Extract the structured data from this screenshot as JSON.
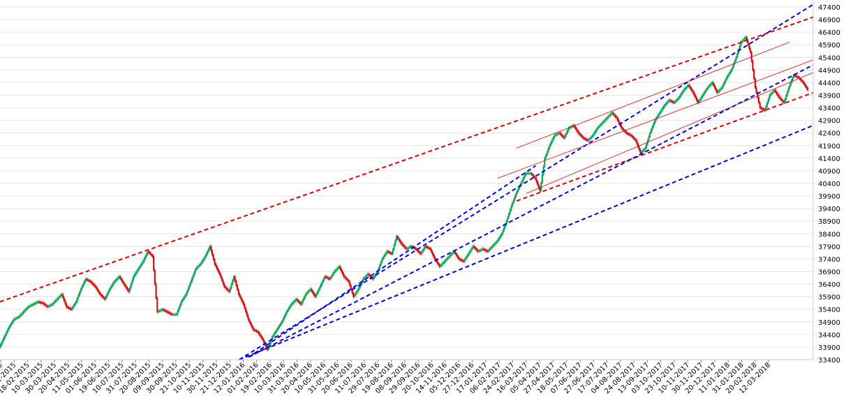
{
  "chart_data": {
    "type": "candlestick",
    "title": "",
    "xlabel": "",
    "ylabel": "",
    "ylim": [
      33400,
      47400
    ],
    "yticks": [
      33400,
      33900,
      34400,
      34900,
      35400,
      35900,
      36400,
      36900,
      37400,
      37900,
      38400,
      38900,
      39400,
      39900,
      40400,
      40900,
      41400,
      41900,
      42400,
      42900,
      43400,
      43900,
      44400,
      44900,
      45400,
      45900,
      46400,
      46900,
      47400
    ],
    "x_tick_labels": [
      "2015",
      "01-2015",
      "18-02-2015",
      "10-03-2015",
      "30-03-2015",
      "20-04-2015",
      "11-05-2015",
      "01-06-2015",
      "19-06-2015",
      "10-07-2015",
      "31-07-2015",
      "20-08-2015",
      "09-09-2015",
      "30-09-2015",
      "21-10-2015",
      "10-11-2015",
      "30-11-2015",
      "21-12-2015",
      "12-01-2016",
      "01-02-2016",
      "19-02-2016",
      "10-03-2016",
      "31-03-2016",
      "20-04-2016",
      "10-05-2016",
      "31-05-2016",
      "20-06-2016",
      "11-07-2016",
      "29-07-2016",
      "19-08-2016",
      "08-09-2016",
      "29-09-2016",
      "20-10-2016",
      "14-11-2016",
      "05-12-2016",
      "27-12-2016",
      "17-01-2017",
      "06-02-2017",
      "24-02-2017",
      "16-03-2017",
      "05-04-2017",
      "27-04-2017",
      "18-05-2017",
      "07-06-2017",
      "27-06-2017",
      "17-07-2017",
      "04-08-2017",
      "24-08-2017",
      "13-09-2017",
      "03-10-2017",
      "23-10-2017",
      "10-11-2017",
      "30-11-2017",
      "20-12-2017",
      "11-01-2018",
      "31-01-2018",
      "20-02-2018",
      "12-03-2018"
    ],
    "closing_path": [
      [
        0,
        33900
      ],
      [
        1,
        34300
      ],
      [
        2,
        34700
      ],
      [
        3,
        35000
      ],
      [
        4,
        35100
      ],
      [
        5,
        35300
      ],
      [
        6,
        35500
      ],
      [
        7,
        35600
      ],
      [
        8,
        35700
      ],
      [
        9,
        35650
      ],
      [
        10,
        35500
      ],
      [
        11,
        35600
      ],
      [
        12,
        35800
      ],
      [
        13,
        36000
      ],
      [
        14,
        35500
      ],
      [
        15,
        35400
      ],
      [
        16,
        35700
      ],
      [
        17,
        36200
      ],
      [
        18,
        36600
      ],
      [
        19,
        36500
      ],
      [
        20,
        36300
      ],
      [
        21,
        36000
      ],
      [
        22,
        35800
      ],
      [
        23,
        36200
      ],
      [
        24,
        36500
      ],
      [
        25,
        36700
      ],
      [
        26,
        36400
      ],
      [
        27,
        36100
      ],
      [
        28,
        36700
      ],
      [
        29,
        37000
      ],
      [
        30,
        37300
      ],
      [
        31,
        37700
      ],
      [
        32,
        37500
      ],
      [
        33,
        35300
      ],
      [
        34,
        35400
      ],
      [
        35,
        35300
      ],
      [
        36,
        35200
      ],
      [
        37,
        35200
      ],
      [
        38,
        35700
      ],
      [
        39,
        36000
      ],
      [
        40,
        36500
      ],
      [
        41,
        37000
      ],
      [
        42,
        37200
      ],
      [
        43,
        37500
      ],
      [
        44,
        37900
      ],
      [
        45,
        37200
      ],
      [
        46,
        36800
      ],
      [
        47,
        36300
      ],
      [
        48,
        36100
      ],
      [
        49,
        36700
      ],
      [
        50,
        36000
      ],
      [
        51,
        35600
      ],
      [
        52,
        35000
      ],
      [
        53,
        34600
      ],
      [
        54,
        34500
      ],
      [
        55,
        34200
      ],
      [
        56,
        33800
      ],
      [
        57,
        34300
      ],
      [
        58,
        34600
      ],
      [
        59,
        34900
      ],
      [
        60,
        35300
      ],
      [
        61,
        35600
      ],
      [
        62,
        35800
      ],
      [
        63,
        35600
      ],
      [
        64,
        36000
      ],
      [
        65,
        36200
      ],
      [
        66,
        35900
      ],
      [
        67,
        36300
      ],
      [
        68,
        36700
      ],
      [
        69,
        36600
      ],
      [
        70,
        36900
      ],
      [
        71,
        37100
      ],
      [
        72,
        36700
      ],
      [
        73,
        36500
      ],
      [
        74,
        35900
      ],
      [
        75,
        36200
      ],
      [
        76,
        36600
      ],
      [
        77,
        36800
      ],
      [
        78,
        36600
      ],
      [
        79,
        36900
      ],
      [
        80,
        37400
      ],
      [
        81,
        37700
      ],
      [
        82,
        37600
      ],
      [
        83,
        38300
      ],
      [
        84,
        38000
      ],
      [
        85,
        37800
      ],
      [
        86,
        37900
      ],
      [
        87,
        37800
      ],
      [
        88,
        37600
      ],
      [
        89,
        37900
      ],
      [
        90,
        37800
      ],
      [
        91,
        37400
      ],
      [
        92,
        37100
      ],
      [
        93,
        37300
      ],
      [
        94,
        37500
      ],
      [
        95,
        37700
      ],
      [
        96,
        37400
      ],
      [
        97,
        37300
      ],
      [
        98,
        37600
      ],
      [
        99,
        37900
      ],
      [
        100,
        37700
      ],
      [
        101,
        37800
      ],
      [
        102,
        37700
      ],
      [
        103,
        37900
      ],
      [
        104,
        38100
      ],
      [
        105,
        38400
      ],
      [
        106,
        38900
      ],
      [
        107,
        39500
      ],
      [
        108,
        40000
      ],
      [
        109,
        40400
      ],
      [
        110,
        40800
      ],
      [
        111,
        40800
      ],
      [
        112,
        40600
      ],
      [
        113,
        40100
      ],
      [
        114,
        41400
      ],
      [
        115,
        41900
      ],
      [
        116,
        42300
      ],
      [
        117,
        42400
      ],
      [
        118,
        42200
      ],
      [
        119,
        42600
      ],
      [
        120,
        42700
      ],
      [
        121,
        42400
      ],
      [
        122,
        42200
      ],
      [
        123,
        42100
      ],
      [
        124,
        42300
      ],
      [
        125,
        42600
      ],
      [
        126,
        42800
      ],
      [
        127,
        43000
      ],
      [
        128,
        43200
      ],
      [
        129,
        43000
      ],
      [
        130,
        42600
      ],
      [
        131,
        42400
      ],
      [
        132,
        42300
      ],
      [
        133,
        42100
      ],
      [
        134,
        41600
      ],
      [
        135,
        41800
      ],
      [
        136,
        42400
      ],
      [
        137,
        42900
      ],
      [
        138,
        43200
      ],
      [
        139,
        43500
      ],
      [
        140,
        43700
      ],
      [
        141,
        43600
      ],
      [
        142,
        43800
      ],
      [
        143,
        44100
      ],
      [
        144,
        44300
      ],
      [
        145,
        44000
      ],
      [
        146,
        43600
      ],
      [
        147,
        43900
      ],
      [
        148,
        44200
      ],
      [
        149,
        44400
      ],
      [
        150,
        44000
      ],
      [
        151,
        44200
      ],
      [
        152,
        44600
      ],
      [
        153,
        44900
      ],
      [
        154,
        45400
      ],
      [
        155,
        46000
      ],
      [
        156,
        46200
      ],
      [
        157,
        45600
      ],
      [
        158,
        44200
      ],
      [
        159,
        43400
      ],
      [
        160,
        43300
      ],
      [
        161,
        43900
      ],
      [
        162,
        44100
      ],
      [
        163,
        43800
      ],
      [
        164,
        43600
      ],
      [
        165,
        44200
      ],
      [
        166,
        44700
      ],
      [
        167,
        44600
      ],
      [
        168,
        44400
      ],
      [
        169,
        44100
      ]
    ],
    "trend_lines": [
      {
        "color": "#dd0000",
        "style": "dashed",
        "from": [
          0,
          35700
        ],
        "to": [
          170,
          47000
        ]
      },
      {
        "color": "#dd0000",
        "style": "dashed",
        "from": [
          108,
          39700
        ],
        "to": [
          170,
          44000
        ]
      },
      {
        "color": "#dd0000",
        "style": "thin",
        "from": [
          104,
          40600
        ],
        "to": [
          170,
          45300
        ]
      },
      {
        "color": "#dd0000",
        "style": "thin",
        "from": [
          108,
          41800
        ],
        "to": [
          165,
          46000
        ]
      },
      {
        "color": "#dd0000",
        "style": "thin",
        "from": [
          110,
          40000
        ],
        "to": [
          170,
          44800
        ]
      },
      {
        "color": "#0000dd",
        "style": "dashed",
        "from": [
          50,
          33400
        ],
        "to": [
          170,
          47500
        ]
      },
      {
        "color": "#0000dd",
        "style": "dashed",
        "from": [
          52,
          33500
        ],
        "to": [
          170,
          45100
        ]
      },
      {
        "color": "#0000dd",
        "style": "dashed",
        "from": [
          50,
          33400
        ],
        "to": [
          170,
          42700
        ]
      },
      {
        "color": "#0000dd",
        "style": "dashed",
        "from": [
          52,
          33500
        ],
        "to": [
          112,
          41100
        ]
      }
    ],
    "colors": {
      "up": "#00a050",
      "down": "#cc0000",
      "grid": "#e6e6e6"
    }
  }
}
